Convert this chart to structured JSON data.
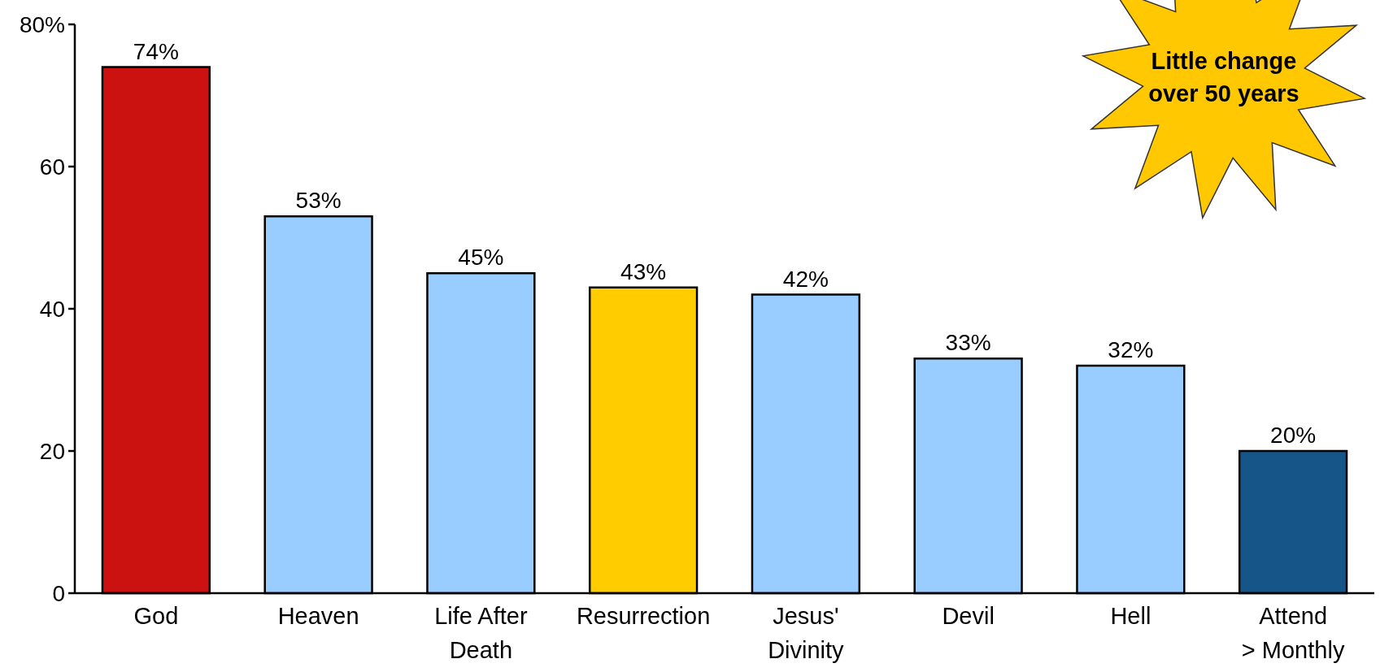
{
  "chart_data": {
    "type": "bar",
    "categories": [
      "God",
      "Heaven",
      "Life After\nDeath",
      "Resurrection",
      "Jesus'\nDivinity",
      "Devil",
      "Hell",
      "Attend\n> Monthly"
    ],
    "values": [
      74,
      53,
      45,
      43,
      42,
      33,
      32,
      20
    ],
    "colors": [
      "#cc1111",
      "#99ccff",
      "#99ccff",
      "#ffcc00",
      "#99ccff",
      "#99ccff",
      "#99ccff",
      "#155588"
    ],
    "value_labels": [
      "74%",
      "53%",
      "45%",
      "43%",
      "42%",
      "33%",
      "32%",
      "20%"
    ],
    "ylim": [
      0,
      80
    ],
    "yticks": [
      0,
      20,
      40,
      60,
      {
        "value": 80,
        "label": "80%"
      }
    ],
    "grid": false,
    "annotations": [
      "Little change\nover 50 years"
    ]
  }
}
